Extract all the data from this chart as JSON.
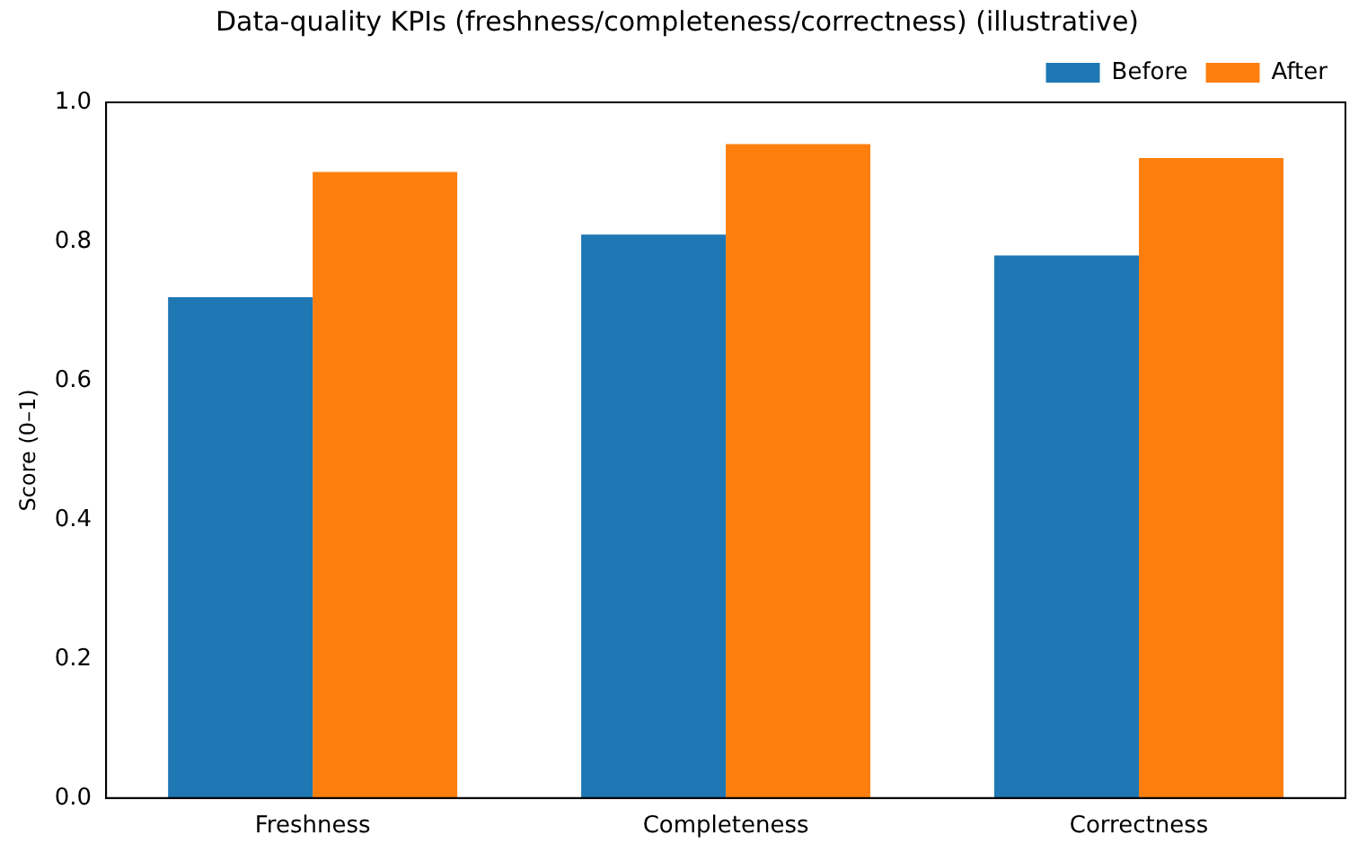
{
  "chart_data": {
    "type": "bar",
    "title": "Data-quality KPIs (freshness/completeness/correctness) (illustrative)",
    "ylabel": "Score (0–1)",
    "categories": [
      "Freshness",
      "Completeness",
      "Correctness"
    ],
    "series": [
      {
        "name": "Before",
        "color": "#1f77b4",
        "values": [
          0.72,
          0.81,
          0.78
        ]
      },
      {
        "name": "After",
        "color": "#ff7f0e",
        "values": [
          0.9,
          0.94,
          0.92
        ]
      }
    ],
    "ylim": [
      0,
      1
    ],
    "yticks": [
      {
        "value": 0,
        "label": "0.0"
      },
      {
        "value": 0.2,
        "label": "0.2"
      },
      {
        "value": 0.4,
        "label": "0.4"
      },
      {
        "value": 0.6,
        "label": "0.6"
      },
      {
        "value": 0.8,
        "label": "0.8"
      },
      {
        "value": 1,
        "label": "1.0"
      }
    ],
    "grid": false,
    "legend": "top right"
  }
}
